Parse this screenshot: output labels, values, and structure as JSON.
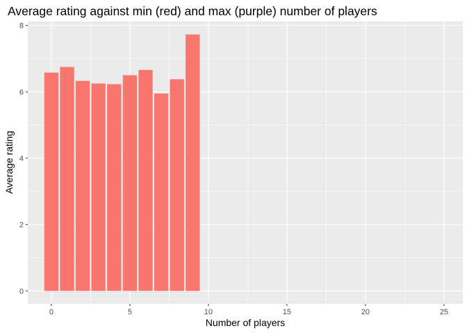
{
  "chart_data": {
    "type": "bar",
    "title": "Average rating against min (red) and max (purple) number of players",
    "xlabel": "Number of players",
    "ylabel": "Average rating",
    "x": [
      0,
      1,
      2,
      3,
      4,
      5,
      6,
      7,
      8,
      9
    ],
    "series": [
      {
        "values": [
          6.58,
          6.75,
          6.33,
          6.25,
          6.23,
          6.5,
          6.66,
          5.95,
          6.38,
          7.73
        ],
        "color": "#f8766d"
      }
    ],
    "xlim": [
      -1.5,
      26.2
    ],
    "ylim": [
      -0.39,
      8.12
    ],
    "xticks": [
      0,
      5,
      10,
      15,
      20,
      25
    ],
    "xtick_labels": [
      "0",
      "5",
      "10",
      "15",
      "20",
      "25"
    ],
    "yticks": [
      0,
      2,
      4,
      6,
      8
    ],
    "ytick_labels": [
      "0",
      "2",
      "4",
      "6",
      "8"
    ],
    "grid": true,
    "panel_background": "#ebebeb",
    "grid_color": "#ffffff"
  }
}
